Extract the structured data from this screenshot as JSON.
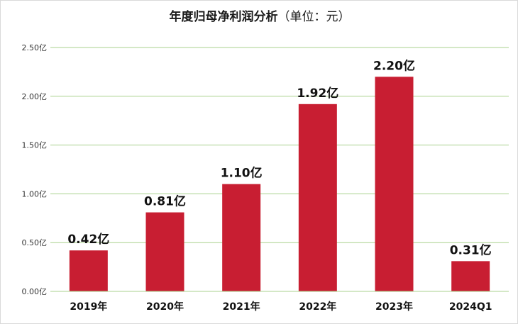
{
  "chart_data": {
    "type": "bar",
    "title": "年度归母净利润分析",
    "unit_label": "（单位：元）",
    "categories": [
      "2019年",
      "2020年",
      "2021年",
      "2022年",
      "2023年",
      "2024Q1"
    ],
    "values": [
      0.42,
      0.81,
      1.1,
      1.92,
      2.2,
      0.31
    ],
    "value_labels": [
      "0.42亿",
      "0.81亿",
      "1.10亿",
      "1.92亿",
      "2.20亿",
      "0.31亿"
    ],
    "y_ticks": [
      0,
      0.5,
      1.0,
      1.5,
      2.0,
      2.5
    ],
    "y_tick_labels": [
      "0.00亿",
      "0.50亿",
      "1.00亿",
      "1.50亿",
      "2.00亿",
      "2.50亿"
    ],
    "ylim": [
      0,
      2.5
    ],
    "grid": true,
    "bar_color": "#c81e32",
    "grid_color": "#a9d18e"
  }
}
